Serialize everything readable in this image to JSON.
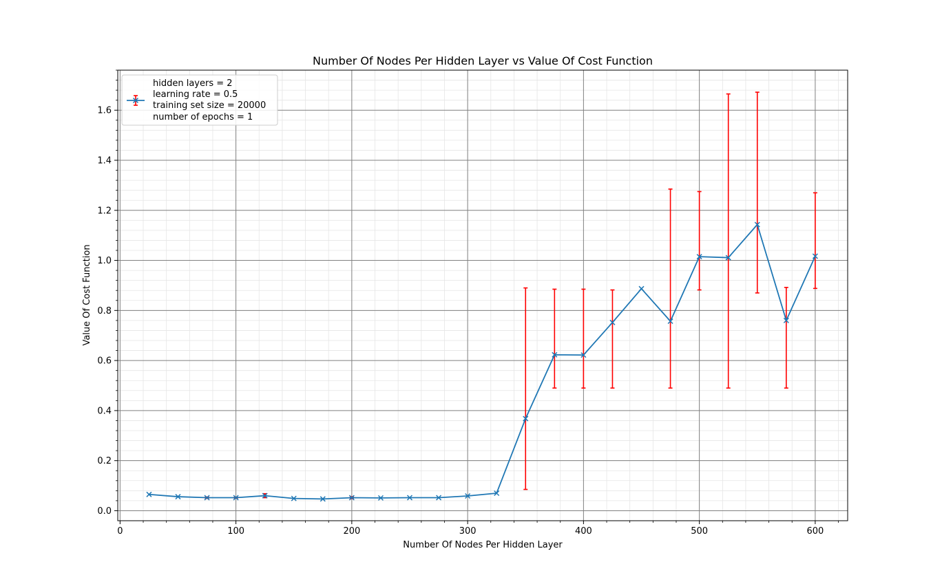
{
  "chart_data": {
    "type": "line",
    "title": "Number Of Nodes Per Hidden Layer vs Value Of Cost Function",
    "xlabel": "Number Of Nodes Per Hidden Layer",
    "ylabel": "Value Of Cost Function",
    "xlim": [
      -2,
      628
    ],
    "ylim": [
      -0.04,
      1.76
    ],
    "xticks": [
      0,
      100,
      200,
      300,
      400,
      500,
      600
    ],
    "yticks": [
      0.0,
      0.2,
      0.4,
      0.6,
      0.8,
      1.0,
      1.2,
      1.4,
      1.6
    ],
    "grid": true,
    "minor_grid": true,
    "legend_position": "top-left",
    "legend_lines": [
      "hidden layers = 2",
      "learning rate = 0.5",
      "training set size = 20000",
      "number of epochs = 1"
    ],
    "colors": {
      "line": "#1f77b4",
      "error": "#ff0000",
      "grid_major": "#808080",
      "grid_minor": "#e5e5e5"
    },
    "series": [
      {
        "marker": "x",
        "x": [
          25,
          50,
          75,
          100,
          125,
          150,
          175,
          200,
          225,
          250,
          275,
          300,
          325,
          350,
          375,
          400,
          425,
          450,
          475,
          500,
          525,
          550,
          575,
          600
        ],
        "y": [
          0.065,
          0.056,
          0.052,
          0.052,
          0.06,
          0.049,
          0.047,
          0.052,
          0.051,
          0.052,
          0.052,
          0.059,
          0.07,
          0.368,
          0.623,
          0.622,
          0.752,
          0.887,
          0.757,
          1.015,
          1.011,
          1.143,
          0.76,
          1.017
        ],
        "yerr_low": [
          0.065,
          0.056,
          0.049,
          0.05,
          0.052,
          0.049,
          0.047,
          0.048,
          0.051,
          0.052,
          0.052,
          0.059,
          0.07,
          0.085,
          0.49,
          0.49,
          0.49,
          0.887,
          0.49,
          0.882,
          0.49,
          0.87,
          0.49,
          0.888
        ],
        "yerr_high": [
          0.065,
          0.056,
          0.055,
          0.054,
          0.068,
          0.049,
          0.047,
          0.056,
          0.051,
          0.052,
          0.052,
          0.059,
          0.07,
          0.89,
          0.885,
          0.885,
          0.882,
          0.887,
          1.285,
          1.275,
          1.665,
          1.672,
          0.892,
          1.27
        ]
      }
    ]
  }
}
